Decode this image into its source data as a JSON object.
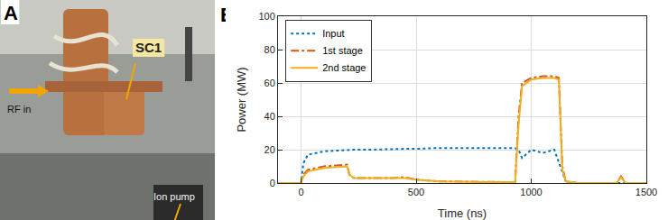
{
  "photo": {
    "panel_label": "A",
    "labels": [
      "SC1",
      "RF in",
      "Ion pump"
    ]
  },
  "chart_panel_label": "B",
  "chart_data": {
    "type": "line",
    "x_label": "Time (ns)",
    "y_label": "Power (MW)",
    "x": [
      -100,
      0,
      10,
      30,
      100,
      200,
      210,
      230,
      300,
      400,
      450,
      500,
      600,
      800,
      930,
      945,
      960,
      1000,
      1050,
      1100,
      1120,
      1135,
      1150,
      1200,
      1370,
      1390,
      1410,
      1500
    ],
    "series": [
      {
        "name": "Input",
        "color": "#0072bd",
        "line_style": "dotted",
        "values": [
          0,
          0,
          12,
          17,
          19,
          20,
          20,
          20,
          20,
          20.5,
          20.5,
          20.5,
          21,
          21,
          21,
          20,
          15,
          20,
          18,
          20,
          12,
          6,
          1,
          0,
          0,
          0,
          0,
          0
        ]
      },
      {
        "name": "1st stage",
        "color": "#d95319",
        "line_style": "dashdot",
        "values": [
          0,
          0,
          5,
          8,
          10,
          11,
          5,
          3,
          3,
          3,
          3.5,
          2,
          1,
          0.5,
          0.5,
          40,
          60,
          63,
          64,
          64,
          63,
          10,
          1,
          0,
          0,
          4,
          0,
          0
        ]
      },
      {
        "name": "2nd stage",
        "color": "#edb120",
        "line_style": "solid",
        "values": [
          0,
          0,
          4,
          7,
          9,
          10,
          5,
          3,
          3,
          3,
          3,
          2,
          1,
          0.5,
          0.5,
          35,
          58,
          62,
          63,
          63,
          62,
          8,
          1,
          0,
          0,
          3.5,
          0,
          0
        ]
      }
    ],
    "xlim": [
      -100,
      1500
    ],
    "xticks": [
      0,
      500,
      1000,
      1500
    ],
    "ylim": [
      0,
      100
    ],
    "yticks": [
      0,
      20,
      40,
      60,
      80,
      100
    ],
    "grid": true,
    "legend": "upper left"
  }
}
